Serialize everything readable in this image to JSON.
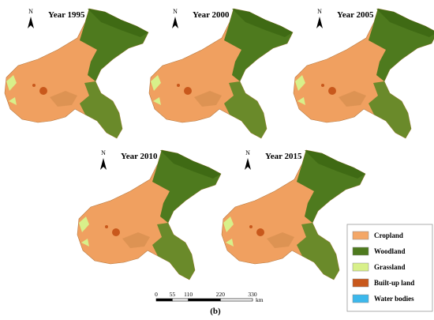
{
  "panels": [
    {
      "title": "Year 1995",
      "north": "N"
    },
    {
      "title": "Year 2000",
      "north": "N"
    },
    {
      "title": "Year 2005",
      "north": "N"
    },
    {
      "title": "Year 2010",
      "north": "N"
    },
    {
      "title": "Year 2015",
      "north": "N"
    }
  ],
  "legend": [
    {
      "label": "Cropland",
      "color": "#f4a767"
    },
    {
      "label": "Woodland",
      "color": "#4e7a1e"
    },
    {
      "label": "Grassland",
      "color": "#d8f08a"
    },
    {
      "label": "Built-up land",
      "color": "#c8581c"
    },
    {
      "label": "Water bodies",
      "color": "#3cb8ec"
    }
  ],
  "scale_bar": {
    "ticks": [
      0,
      55,
      110,
      220,
      330
    ],
    "unit": "km"
  },
  "caption": "(b)"
}
